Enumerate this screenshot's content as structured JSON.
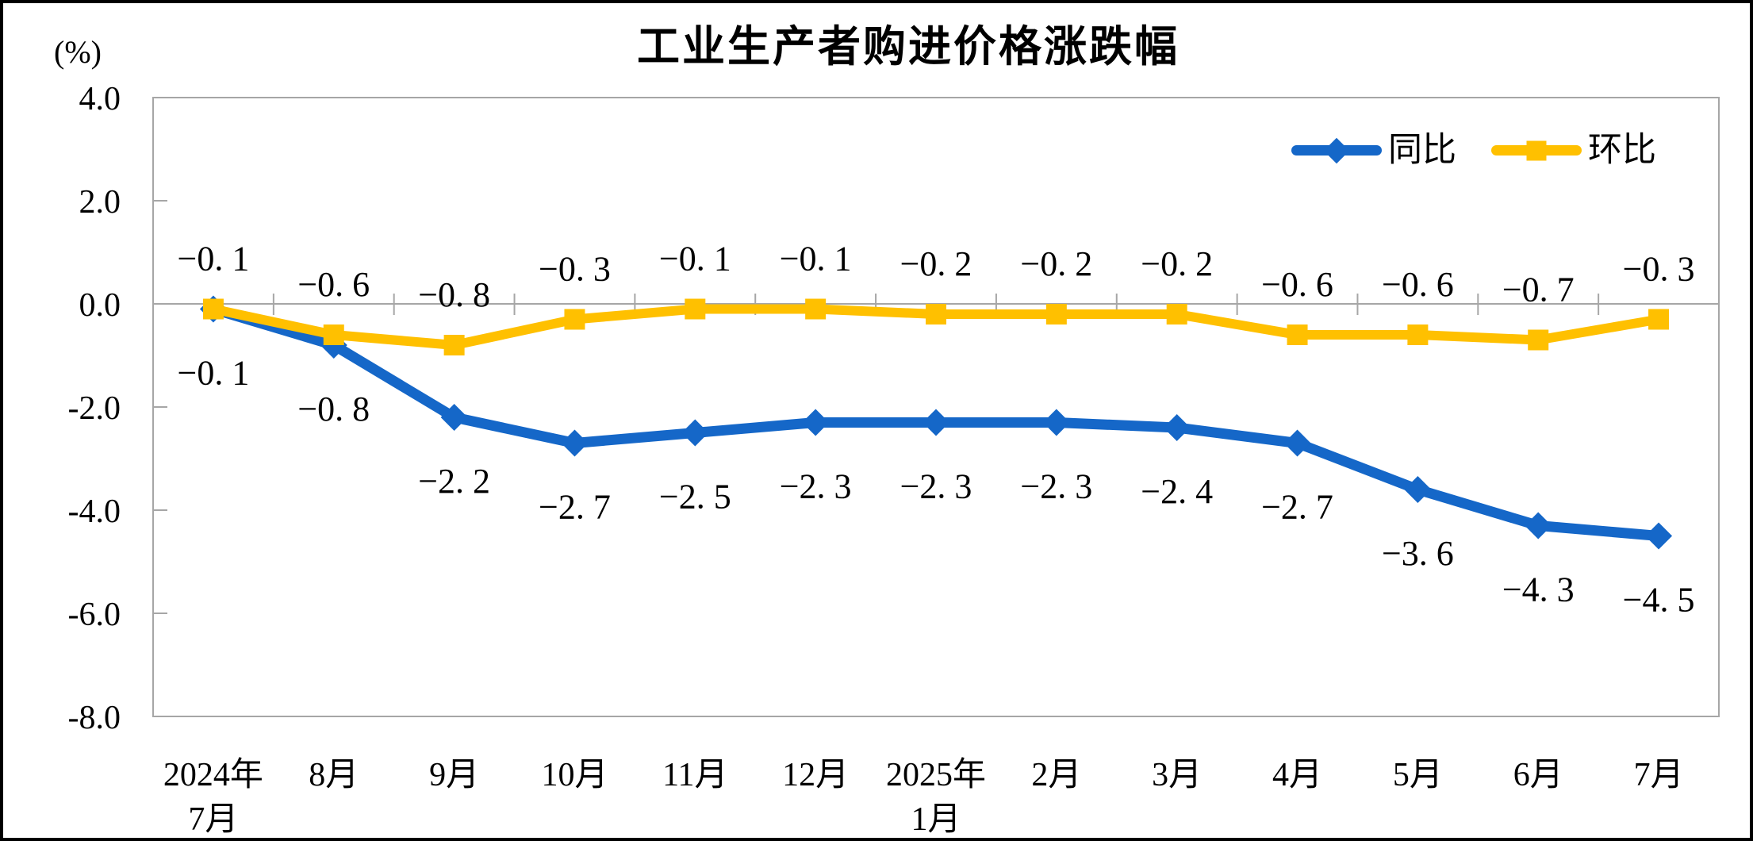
{
  "chart_data": {
    "type": "line",
    "title": "工业生产者购进价格涨跌幅",
    "y_unit": "(%)",
    "categories": [
      "2024年7月",
      "8月",
      "9月",
      "10月",
      "11月",
      "12月",
      "2025年1月",
      "2月",
      "3月",
      "4月",
      "5月",
      "6月",
      "7月"
    ],
    "x_labels": [
      {
        "line1": "2024年",
        "line2": "7月"
      },
      {
        "line1": "8月",
        "line2": ""
      },
      {
        "line1": "9月",
        "line2": ""
      },
      {
        "line1": "10月",
        "line2": ""
      },
      {
        "line1": "11月",
        "line2": ""
      },
      {
        "line1": "12月",
        "line2": ""
      },
      {
        "line1": "2025年",
        "line2": "1月"
      },
      {
        "line1": "2月",
        "line2": ""
      },
      {
        "line1": "3月",
        "line2": ""
      },
      {
        "line1": "4月",
        "line2": ""
      },
      {
        "line1": "5月",
        "line2": ""
      },
      {
        "line1": "6月",
        "line2": ""
      },
      {
        "line1": "7月",
        "line2": ""
      }
    ],
    "series": [
      {
        "name": "同比",
        "marker": "diamond",
        "color": "#1567C8",
        "label_position": "below",
        "values": [
          -0.1,
          -0.8,
          -2.2,
          -2.7,
          -2.5,
          -2.3,
          -2.3,
          -2.3,
          -2.4,
          -2.7,
          -3.6,
          -4.3,
          -4.5
        ],
        "labels": [
          "−0. 1",
          "−0. 8",
          "−2. 2",
          "−2. 7",
          "−2. 5",
          "−2. 3",
          "−2. 3",
          "−2. 3",
          "−2. 4",
          "−2. 7",
          "−3. 6",
          "−4. 3",
          "−4. 5"
        ]
      },
      {
        "name": "环比",
        "marker": "square",
        "color": "#FFC000",
        "label_position": "above",
        "values": [
          -0.1,
          -0.6,
          -0.8,
          -0.3,
          -0.1,
          -0.1,
          -0.2,
          -0.2,
          -0.2,
          -0.6,
          -0.6,
          -0.7,
          -0.3
        ],
        "labels": [
          "−0. 1",
          "−0. 6",
          "−0. 8",
          "−0. 3",
          "−0. 1",
          "−0. 1",
          "−0. 2",
          "−0. 2",
          "−0. 2",
          "−0. 6",
          "−0. 6",
          "−0. 7",
          "−0. 3"
        ]
      }
    ],
    "y_axis": {
      "min": -8.0,
      "max": 4.0,
      "step": 2.0,
      "ticks": [
        {
          "value": 4,
          "label": "4.0"
        },
        {
          "value": 2,
          "label": "2.0"
        },
        {
          "value": 0,
          "label": "0.0"
        },
        {
          "value": -2,
          "label": "-2.0"
        },
        {
          "value": -4,
          "label": "-4.0"
        },
        {
          "value": -6,
          "label": "-6.0"
        },
        {
          "value": -8,
          "label": "-8.0"
        }
      ]
    },
    "legend": {
      "position": "top-right-inside",
      "entries": [
        {
          "label": "同比",
          "color": "#1567C8",
          "marker": "diamond"
        },
        {
          "label": "环比",
          "color": "#FFC000",
          "marker": "square"
        }
      ]
    },
    "grid": "zero-line-only",
    "colors": {
      "axis": "#A6A6A6",
      "text": "#000000",
      "frame": "#000000",
      "background": "#FFFFFF"
    }
  }
}
